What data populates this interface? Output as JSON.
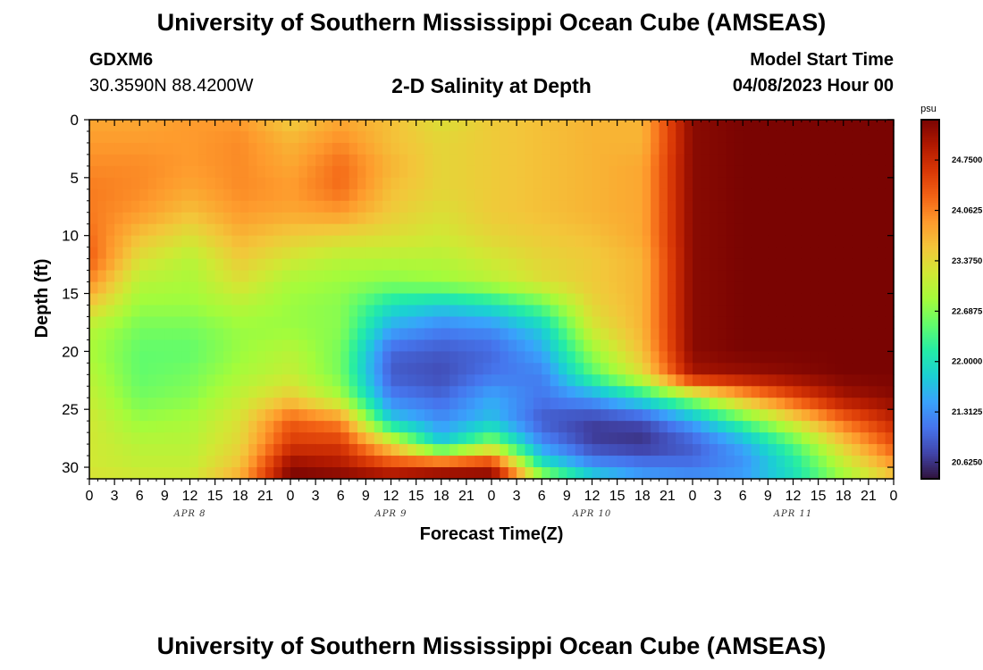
{
  "header": {
    "title": "University of Southern Mississippi Ocean Cube (AMSEAS)",
    "station_id": "GDXM6",
    "coordinates": "30.3590N  88.4200W",
    "subtitle": "2-D Salinity at Depth",
    "model_start_label": "Model Start Time",
    "model_start_value": "04/08/2023 Hour 00"
  },
  "footer": {
    "title": "University of Southern Mississippi Ocean Cube (AMSEAS)"
  },
  "colors": {
    "colormap": [
      "#30123b",
      "#4145ab",
      "#4675ed",
      "#39a2fc",
      "#1bcfd4",
      "#24eca6",
      "#61fc6c",
      "#a4fc3b",
      "#d1e834",
      "#f3c63a",
      "#fe9b2d",
      "#f36315",
      "#d93806",
      "#b11901",
      "#7a0402"
    ]
  },
  "chart_data": {
    "type": "heatmap",
    "xlabel": "Forecast Time(Z)",
    "ylabel": "Depth (ft)",
    "xlim": [
      0,
      96
    ],
    "ylim": [
      0,
      31
    ],
    "x_ticks": [
      0,
      3,
      6,
      9,
      12,
      15,
      18,
      21,
      24,
      27,
      30,
      33,
      36,
      39,
      42,
      45,
      48,
      51,
      54,
      57,
      60,
      63,
      66,
      69,
      72,
      75,
      78,
      81,
      84,
      87,
      90,
      93,
      96
    ],
    "x_tick_labels": [
      "0",
      "3",
      "6",
      "9",
      "12",
      "15",
      "18",
      "21",
      "0",
      "3",
      "6",
      "9",
      "12",
      "15",
      "18",
      "21",
      "0",
      "3",
      "6",
      "9",
      "12",
      "15",
      "18",
      "21",
      "0",
      "3",
      "6",
      "9",
      "12",
      "15",
      "18",
      "21",
      "0"
    ],
    "y_ticks": [
      0,
      5,
      10,
      15,
      20,
      25,
      30
    ],
    "y_tick_labels": [
      "0",
      "5",
      "10",
      "15",
      "20",
      "25",
      "30"
    ],
    "day_labels": [
      {
        "text": "APR 8",
        "x": 12
      },
      {
        "text": "APR 9",
        "x": 36
      },
      {
        "text": "APR 10",
        "x": 60
      },
      {
        "text": "APR 11",
        "x": 84
      }
    ],
    "colorbar": {
      "unit": "psu",
      "range": [
        20.4,
        25.3
      ],
      "ticks": [
        20.625,
        21.3125,
        22.0,
        22.6875,
        23.375,
        24.0625,
        24.75
      ],
      "tick_labels": [
        "20.6250",
        "21.3125",
        "22.0000",
        "22.6875",
        "23.3750",
        "24.0625",
        "24.7500"
      ]
    },
    "depths": [
      0,
      2,
      4,
      6,
      8,
      10,
      12,
      14,
      16,
      18,
      20,
      22,
      24,
      26,
      28,
      30,
      31
    ],
    "hours": [
      0,
      6,
      12,
      18,
      24,
      30,
      36,
      42,
      48,
      54,
      60,
      66,
      72,
      78,
      84,
      90,
      96
    ],
    "salinity": [
      [
        23.8,
        23.8,
        23.9,
        23.9,
        23.5,
        23.8,
        23.6,
        23.3,
        23.5,
        23.6,
        23.7,
        23.7,
        25.2,
        25.3,
        25.3,
        25.3,
        25.3
      ],
      [
        23.9,
        23.9,
        23.9,
        24.0,
        23.7,
        24.0,
        23.6,
        23.4,
        23.5,
        23.6,
        23.7,
        23.7,
        25.2,
        25.3,
        25.3,
        25.3,
        25.3
      ],
      [
        24.0,
        24.0,
        23.9,
        24.0,
        23.8,
        24.2,
        23.7,
        23.4,
        23.5,
        23.6,
        23.7,
        23.8,
        25.2,
        25.3,
        25.3,
        25.3,
        25.3
      ],
      [
        24.1,
        24.0,
        23.8,
        24.0,
        23.9,
        24.2,
        23.6,
        23.4,
        23.5,
        23.6,
        23.7,
        23.8,
        25.2,
        25.3,
        25.3,
        25.3,
        25.3
      ],
      [
        24.1,
        23.9,
        23.6,
        23.9,
        23.8,
        23.9,
        23.5,
        23.3,
        23.5,
        23.6,
        23.7,
        23.8,
        25.2,
        25.3,
        25.3,
        25.3,
        25.3
      ],
      [
        24.2,
        23.6,
        23.3,
        23.7,
        23.5,
        23.4,
        23.3,
        23.2,
        23.4,
        23.5,
        23.6,
        23.8,
        25.2,
        25.3,
        25.3,
        25.3,
        25.3
      ],
      [
        24.3,
        23.3,
        23.0,
        23.5,
        23.2,
        23.0,
        23.0,
        23.0,
        23.2,
        23.4,
        23.5,
        23.7,
        25.2,
        25.3,
        25.3,
        25.3,
        25.3
      ],
      [
        24.0,
        23.0,
        22.9,
        23.3,
        22.9,
        22.8,
        22.7,
        22.8,
        23.0,
        23.3,
        23.5,
        23.7,
        25.2,
        25.3,
        25.3,
        25.3,
        25.3
      ],
      [
        23.5,
        22.8,
        22.8,
        23.0,
        22.8,
        22.7,
        22.0,
        21.8,
        22.0,
        22.5,
        23.4,
        23.7,
        25.2,
        25.3,
        25.3,
        25.3,
        25.3
      ],
      [
        23.0,
        22.6,
        22.6,
        22.8,
        22.8,
        22.7,
        21.5,
        21.2,
        21.3,
        21.8,
        23.2,
        23.7,
        25.2,
        25.3,
        25.3,
        25.3,
        25.3
      ],
      [
        22.9,
        22.5,
        22.5,
        22.8,
        23.0,
        22.6,
        21.0,
        20.9,
        21.0,
        21.5,
        22.8,
        23.6,
        25.2,
        25.3,
        25.3,
        25.3,
        25.3
      ],
      [
        23.0,
        22.5,
        22.6,
        22.9,
        23.1,
        22.6,
        20.9,
        20.8,
        21.1,
        21.2,
        22.4,
        23.3,
        25.0,
        25.1,
        25.2,
        25.3,
        25.3
      ],
      [
        23.1,
        22.6,
        22.7,
        23.1,
        23.5,
        22.9,
        21.2,
        21.0,
        21.5,
        21.1,
        21.4,
        22.0,
        22.8,
        23.7,
        24.4,
        25.0,
        25.2
      ],
      [
        23.2,
        22.8,
        22.9,
        23.3,
        24.3,
        24.0,
        21.8,
        21.3,
        21.7,
        20.9,
        20.7,
        20.8,
        21.5,
        22.4,
        23.3,
        24.2,
        24.8
      ],
      [
        23.2,
        23.0,
        23.0,
        23.4,
        24.6,
        24.6,
        23.4,
        21.8,
        22.8,
        21.3,
        20.7,
        20.6,
        20.9,
        21.5,
        22.4,
        23.5,
        24.4
      ],
      [
        23.2,
        23.1,
        23.1,
        23.6,
        25.2,
        25.0,
        24.6,
        24.8,
        24.9,
        22.2,
        21.4,
        21.2,
        21.1,
        21.3,
        22.0,
        23.0,
        23.8
      ],
      [
        23.3,
        23.2,
        23.2,
        23.8,
        25.3,
        25.3,
        25.2,
        25.3,
        25.3,
        23.0,
        22.0,
        21.5,
        21.4,
        21.5,
        22.0,
        22.8,
        23.5
      ]
    ]
  }
}
